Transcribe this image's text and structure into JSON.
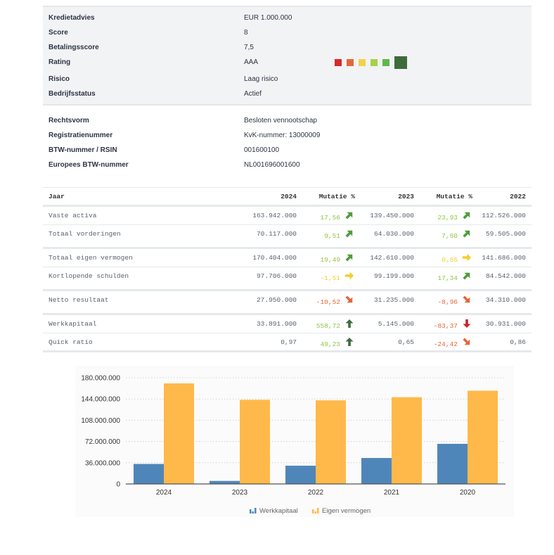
{
  "info": [
    {
      "label": "Kredietadvies",
      "value": "EUR 1.000.000"
    },
    {
      "label": "Score",
      "value": "8"
    },
    {
      "label": "Betalingsscore",
      "value": "7,5"
    },
    {
      "label": "Rating",
      "value": "AAA"
    },
    {
      "label": "Risico",
      "value": "Laag risico"
    },
    {
      "label": "Bedrijfsstatus",
      "value": "Actief"
    }
  ],
  "rating_scale": {
    "colors": [
      "#d42b2b",
      "#e2683a",
      "#f1d24a",
      "#a6d147",
      "#5db84c",
      "#3f6b3b"
    ],
    "active_index": 5
  },
  "registration": [
    {
      "label": "Rechtsvorm",
      "value": "Besloten vennootschap"
    },
    {
      "label": "Registratienummer",
      "value": "KvK-nummer: 13000009"
    },
    {
      "label": "BTW-nummer / RSIN",
      "value": "001600100"
    },
    {
      "label": "Europees BTW-nummer",
      "value": "NL001696001600"
    }
  ],
  "table": {
    "headers": [
      "Jaar",
      "2024",
      "Mutatie %",
      "2023",
      "Mutatie %",
      "2022"
    ],
    "groups": [
      [
        {
          "label": "Vaste activa",
          "v2024": "163.942.000",
          "m1": "17,56",
          "m1_icon": "arrow-up-right-green-icon",
          "v2023": "139.450.000",
          "m2": "23,93",
          "m2_icon": "arrow-up-right-green-icon",
          "v2022": "112.526.000"
        },
        {
          "label": "Totaal vorderingen",
          "v2024": "70.117.000",
          "m1": "9,51",
          "m1_icon": "arrow-up-right-green-icon",
          "v2023": "64.030.000",
          "m2": "7,60",
          "m2_icon": "arrow-up-right-green-icon",
          "v2022": "59.505.000"
        }
      ],
      [
        {
          "label": "Totaal eigen vermogen",
          "v2024": "170.404.000",
          "m1": "19,49",
          "m1_icon": "arrow-up-right-green-icon",
          "v2023": "142.610.000",
          "m2": "0,65",
          "m2_icon": "arrow-right-yellow-icon",
          "v2022": "141.686.000"
        },
        {
          "label": "Kortlopende schulden",
          "v2024": "97.706.000",
          "m1": "-1,51",
          "m1_icon": "arrow-right-yellow-icon",
          "v2023": "99.199.000",
          "m2": "17,34",
          "m2_icon": "arrow-up-right-green-icon",
          "v2022": "84.542.000"
        }
      ],
      [
        {
          "label": "Netto resultaat",
          "v2024": "27.950.000",
          "m1": "-10,52",
          "m1_icon": "arrow-down-right-orange-icon",
          "v2023": "31.235.000",
          "m2": "-8,96",
          "m2_icon": "arrow-down-right-orange-icon",
          "v2022": "34.310.000"
        }
      ],
      [
        {
          "label": "Werkkapitaal",
          "v2024": "33.891.000",
          "m1": "558,72",
          "m1_icon": "arrow-up-darkgreen-icon",
          "v2023": "5.145.000",
          "m2": "-83,37",
          "m2_icon": "arrow-down-red-icon",
          "v2022": "30.931.000"
        },
        {
          "label": "Quick ratio",
          "v2024": "0,97",
          "m1": "49,23",
          "m1_icon": "arrow-up-darkgreen-icon",
          "v2023": "0,65",
          "m2": "-24,42",
          "m2_icon": "arrow-down-right-orange-icon",
          "v2022": "0,86"
        }
      ]
    ]
  },
  "chart_data": {
    "type": "bar",
    "categories": [
      "2024",
      "2023",
      "2022",
      "2021",
      "2020"
    ],
    "series": [
      {
        "name": "Werkkapitaal",
        "color": "#4f86b9",
        "values": [
          33891000,
          5145000,
          30931000,
          44000000,
          68000000
        ]
      },
      {
        "name": "Eigen vermogen",
        "color": "#ffb94a",
        "values": [
          170404000,
          142610000,
          141686000,
          147000000,
          158000000
        ]
      }
    ],
    "ylim": [
      0,
      180000000
    ],
    "yticks": [
      "0",
      "36.000.000",
      "72.000.000",
      "108.000.000",
      "144.000.000",
      "180.000.000"
    ],
    "grid": true,
    "legend": "bottom"
  }
}
